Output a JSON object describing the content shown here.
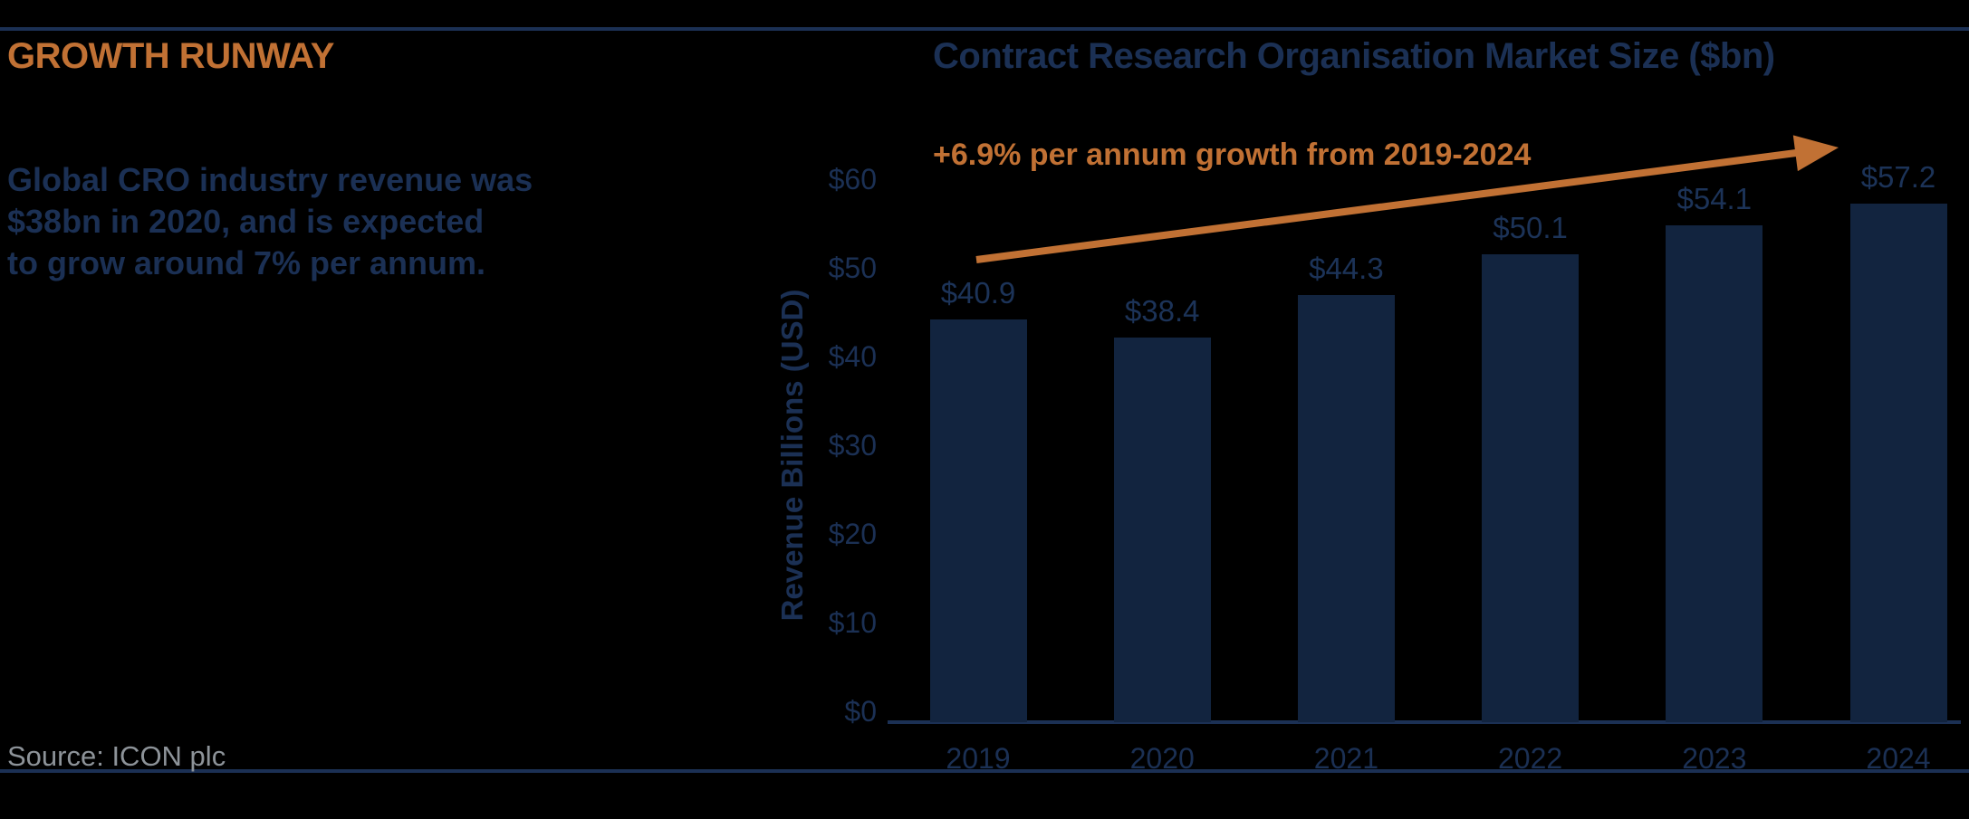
{
  "page": {
    "heading": "GROWTH RUNWAY",
    "paragraph": "Global CRO industry revenue was\n$38bn in 2020, and is expected\nto grow around 7% per annum.",
    "source": "Source: ICON plc"
  },
  "colors": {
    "background": "#000000",
    "orange_accent": "#C17134",
    "navy_text": "#1B3054",
    "bar_fill": "#12243F",
    "source_gray": "#8D9399"
  },
  "chart_data": {
    "type": "bar",
    "title": "Contract Research Organisation Market Size ($bn)",
    "annotation": "+6.9% per annum growth from 2019-2024",
    "categories": [
      "2019",
      "2020",
      "2021",
      "2022",
      "2023",
      "2024"
    ],
    "values": [
      40.9,
      38.4,
      44.3,
      50.1,
      54.1,
      57.2
    ],
    "value_labels": [
      "$40.9",
      "$38.4",
      "$44.3",
      "$50.1",
      "$54.1",
      "$57.2"
    ],
    "xlabel": "",
    "ylabel": "Revenue Billions (USD)",
    "ytick_values": [
      0,
      10,
      20,
      30,
      40,
      50,
      60
    ],
    "ytick_labels": [
      "$0",
      "$10",
      "$20",
      "$30",
      "$40",
      "$50",
      "$60"
    ],
    "ylim": [
      0,
      60
    ],
    "grid": false,
    "legend": false,
    "annotation_arrow": "orange upward arrow from first bar to last bar"
  }
}
